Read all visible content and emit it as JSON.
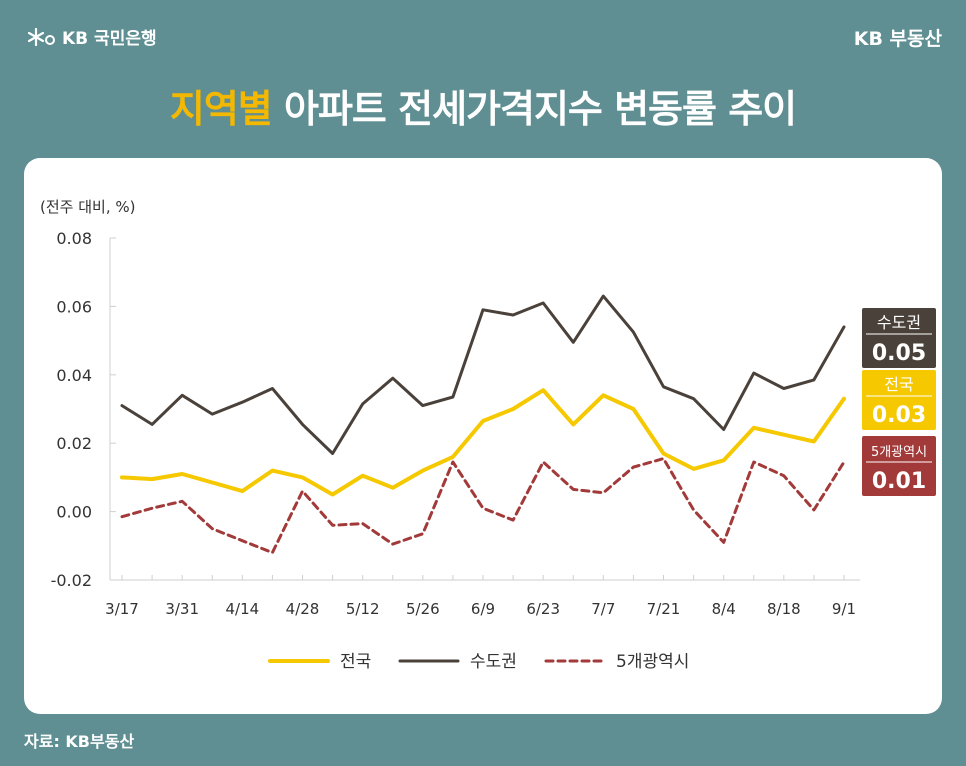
{
  "header": {
    "bank_logo": "KB 국민은행",
    "brand_logo": "KB 부동산",
    "title_highlight": "지역별",
    "title_rest": " 아파트 전세가격지수 변동률 추이"
  },
  "footer": {
    "source": "자료: KB부동산"
  },
  "colors": {
    "background": "#5f8f92",
    "highlight": "#f5b800",
    "national": "#f5c800",
    "capital": "#4a413a",
    "metro": "#a33a3a"
  },
  "chart_data": {
    "type": "line",
    "unit_label": "(전주 대비, %)",
    "ylim": [
      -0.02,
      0.08
    ],
    "yticks": [
      "0.08",
      "0.06",
      "0.04",
      "0.02",
      "0.00",
      "-0.02"
    ],
    "ytick_values": [
      0.08,
      0.06,
      0.04,
      0.02,
      0.0,
      -0.02
    ],
    "x_tick_labels": [
      "3/17",
      "3/31",
      "4/14",
      "4/28",
      "5/12",
      "5/26",
      "6/9",
      "6/23",
      "7/7",
      "7/21",
      "8/4",
      "8/18",
      "9/1"
    ],
    "x_count": 25,
    "series": [
      {
        "name": "전국",
        "key": "national",
        "values": [
          0.01,
          0.0095,
          0.011,
          0.0085,
          0.006,
          0.012,
          0.01,
          0.005,
          0.0105,
          0.007,
          0.012,
          0.016,
          0.0265,
          0.03,
          0.0355,
          0.0255,
          0.034,
          0.03,
          0.017,
          0.0125,
          0.015,
          0.0245,
          0.0225,
          0.0205,
          0.033
        ],
        "end_label": "전국",
        "end_value": "0.03"
      },
      {
        "name": "수도권",
        "key": "capital",
        "values": [
          0.031,
          0.0255,
          0.034,
          0.0285,
          0.032,
          0.036,
          0.0255,
          0.017,
          0.0315,
          0.039,
          0.031,
          0.0335,
          0.059,
          0.0575,
          0.061,
          0.0495,
          0.063,
          0.0525,
          0.0365,
          0.033,
          0.024,
          0.0405,
          0.036,
          0.0385,
          0.054
        ],
        "end_label": "수도권",
        "end_value": "0.05"
      },
      {
        "name": "5개광역시",
        "key": "metro",
        "values": [
          -0.0015,
          0.001,
          0.003,
          -0.005,
          -0.0085,
          -0.012,
          0.006,
          -0.004,
          -0.0035,
          -0.0095,
          -0.0065,
          0.0145,
          0.001,
          -0.0025,
          0.0145,
          0.0065,
          0.0055,
          0.013,
          0.0155,
          0.0005,
          -0.009,
          0.0145,
          0.0105,
          0.0005,
          0.0145
        ],
        "end_label": "5개광역시",
        "end_value": "0.01"
      }
    ],
    "legend": [
      "전국",
      "수도권",
      "5개광역시"
    ],
    "legend_position": "bottom"
  }
}
